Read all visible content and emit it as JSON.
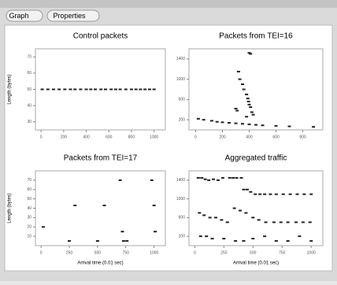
{
  "toolbar": {
    "buttons": [
      "Graph",
      "Properties"
    ]
  },
  "chart_data": [
    {
      "type": "scatter",
      "title": "Control packets",
      "ylabel": "Length (bytes)",
      "color": "#222222",
      "xlim": [
        -50,
        1100
      ],
      "ylim": [
        25,
        75
      ],
      "xticks": [
        0,
        200,
        400,
        600,
        800,
        1000
      ],
      "yticks": [
        30,
        40,
        50,
        60,
        70
      ],
      "x": [
        10,
        60,
        110,
        160,
        210,
        260,
        300,
        350,
        400,
        440,
        480,
        530,
        570,
        620,
        660,
        700,
        750,
        800,
        840,
        880,
        920,
        960,
        1000
      ],
      "values": [
        50,
        50,
        50,
        50,
        50,
        50,
        50,
        50,
        50,
        50,
        50,
        50,
        50,
        50,
        50,
        50,
        50,
        50,
        50,
        50,
        50,
        50,
        50
      ]
    },
    {
      "type": "scatter",
      "title": "Packets from TEI=16",
      "color": "#222222",
      "xlim": [
        -50,
        950
      ],
      "ylim": [
        0,
        1600
      ],
      "xticks": [
        0,
        200,
        400,
        600,
        800
      ],
      "yticks": [
        200,
        600,
        1000,
        1400
      ],
      "x": [
        400,
        410,
        320,
        330,
        350,
        360,
        380,
        390,
        395,
        400,
        410,
        300,
        310,
        420,
        430,
        380,
        20,
        60,
        120,
        160,
        200,
        250,
        300,
        350,
        400,
        450,
        500,
        600,
        700,
        880
      ],
      "values": [
        1520,
        1500,
        1150,
        1000,
        900,
        800,
        700,
        620,
        560,
        500,
        450,
        420,
        380,
        350,
        300,
        260,
        220,
        200,
        180,
        160,
        150,
        140,
        130,
        120,
        110,
        100,
        90,
        80,
        70,
        60
      ]
    },
    {
      "type": "scatter",
      "title": "Packets from TEI=17",
      "ylabel": "Length (bytes)",
      "xlabel": "Arrival time (0.01 sec)",
      "color": "#222222",
      "xlim": [
        -50,
        1100
      ],
      "ylim": [
        0,
        80
      ],
      "xticks": [
        0,
        250,
        500,
        750,
        1000
      ],
      "yticks": [
        10,
        20,
        30,
        40,
        50,
        60,
        70
      ],
      "x": [
        20,
        300,
        560,
        700,
        720,
        730,
        980,
        1000,
        1010,
        250,
        500,
        760
      ],
      "values": [
        20,
        43,
        43,
        70,
        15,
        5,
        70,
        43,
        15,
        5,
        5,
        5
      ]
    },
    {
      "type": "scatter",
      "title": "Aggregated traffic",
      "xlabel": "Arrival time (0.01 sec)",
      "color": "#222222",
      "xlim": [
        -50,
        1100
      ],
      "ylim": [
        0,
        1600
      ],
      "xticks": [
        0,
        250,
        500,
        750,
        1000
      ],
      "yticks": [
        200,
        600,
        1000,
        1400
      ],
      "x": [
        30,
        60,
        90,
        120,
        160,
        200,
        240,
        300,
        330,
        360,
        400,
        420,
        450,
        480,
        520,
        560,
        600,
        650,
        700,
        760,
        820,
        880,
        940,
        1000,
        40,
        80,
        130,
        180,
        230,
        280,
        340,
        390,
        440,
        500,
        550,
        610,
        680,
        740,
        800,
        870,
        930,
        990,
        50,
        100,
        150,
        250,
        350,
        420,
        500,
        600,
        700,
        800,
        900,
        1000
      ],
      "values": [
        1450,
        1450,
        1420,
        1400,
        1420,
        1400,
        1450,
        1450,
        1450,
        1450,
        1450,
        1200,
        1200,
        1150,
        1100,
        1100,
        1100,
        1100,
        1100,
        1100,
        1100,
        1100,
        1100,
        1100,
        700,
        650,
        600,
        600,
        550,
        500,
        800,
        750,
        700,
        600,
        550,
        500,
        500,
        500,
        500,
        500,
        500,
        500,
        200,
        200,
        150,
        150,
        100,
        100,
        150,
        200,
        100,
        100,
        200,
        100
      ]
    }
  ]
}
